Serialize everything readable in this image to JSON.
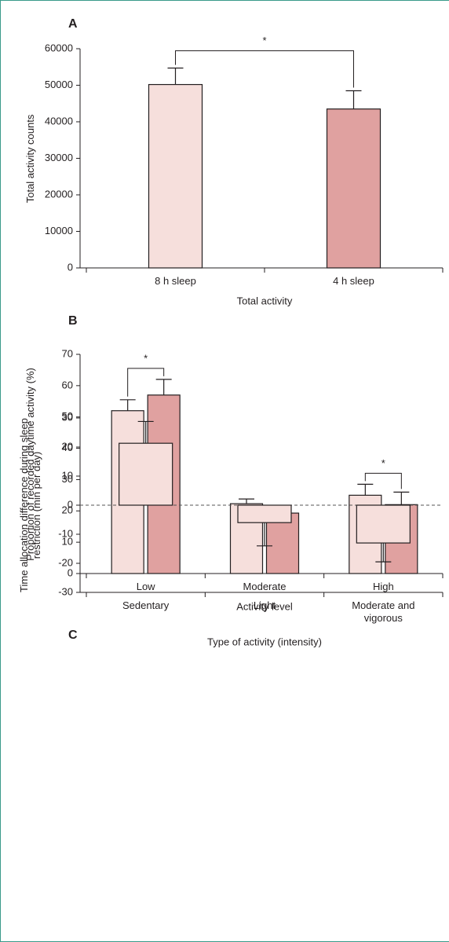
{
  "chart_data": [
    {
      "type": "bar",
      "panel": "A",
      "y_label": "Total activity counts",
      "x_label": "Total activity",
      "categories": [
        "8 h sleep",
        "4 h sleep"
      ],
      "values": [
        50200,
        43500
      ],
      "errors": [
        4500,
        5000
      ],
      "colors": [
        "#f6dfdc",
        "#e0a1a0"
      ],
      "ylim": [
        0,
        60000
      ],
      "yticks": [
        0,
        10000,
        20000,
        30000,
        40000,
        50000,
        60000
      ],
      "significance": [
        {
          "between": [
            0,
            1
          ],
          "label": "*"
        }
      ]
    },
    {
      "type": "grouped_bar",
      "panel": "B",
      "y_label": "Proportion of recorded daytime activity (%)",
      "x_label": "Activity level",
      "categories": [
        "Low",
        "Moderate",
        "High"
      ],
      "series": [
        {
          "color": "#f6dfdc",
          "values": [
            52,
            22.3,
            25
          ],
          "errors": [
            3.5,
            1.5,
            3.5
          ]
        },
        {
          "color": "#e0a1a0",
          "values": [
            57,
            19.3,
            22
          ],
          "errors": [
            5,
            2.5,
            4
          ]
        }
      ],
      "ylim": [
        0,
        70
      ],
      "yticks": [
        0,
        10,
        20,
        30,
        40,
        50,
        60,
        70
      ],
      "significance": [
        {
          "category": 0,
          "label": "*"
        },
        {
          "category": 2,
          "label": "*"
        }
      ]
    },
    {
      "type": "bar",
      "panel": "C",
      "y_label": "Time allocation difference during sleep restriction (min per day)",
      "x_label": "Type of activity (intensity)",
      "categories": [
        "Sedentary",
        "Light",
        "Moderate and vigorous"
      ],
      "values": [
        21.3,
        -6,
        -13
      ],
      "errors": [
        7.5,
        8,
        6.5
      ],
      "color": "#f6dfdc",
      "ylim": [
        -30,
        30
      ],
      "yticks": [
        -30,
        -20,
        -10,
        0,
        10,
        20,
        30
      ]
    }
  ]
}
